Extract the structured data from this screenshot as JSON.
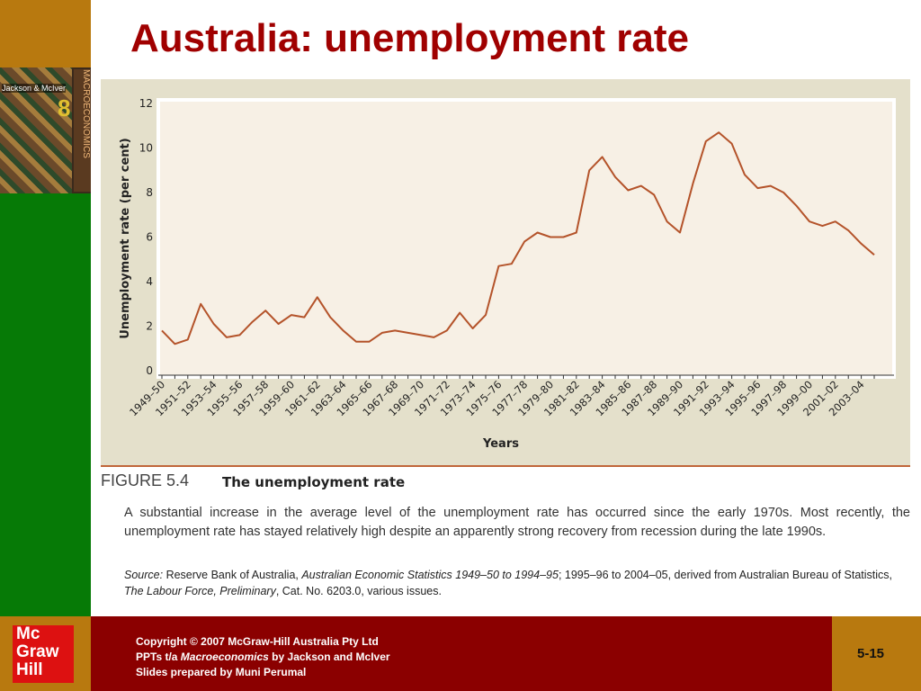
{
  "slide": {
    "title": "Australia: unemployment rate",
    "figure_label": "FIGURE 5.4",
    "figure_title": "The unemployment rate",
    "caption": "A substantial increase in the average level of the unemployment rate has occurred since the early 1970s. Most recently, the unemployment rate has stayed relatively high despite an apparently strong recovery from recession during the late 1990s.",
    "source": [
      "Source:",
      " Reserve Bank of Australia, ",
      "Australian Economic Statistics 1949–50 to 1994–95",
      "; 1995–96 to 2004–05, derived from Australian Bureau of Statistics, ",
      "The Labour Force, Preliminary",
      ", Cat. No. 6203.0, various issues."
    ],
    "book": {
      "authors": "Jackson & McIver",
      "edition": "8",
      "name": "MACROECONOMICS"
    },
    "logo": [
      "Mc",
      "Graw",
      "Hill"
    ],
    "footer": {
      "line1": "Copyright © 2007 McGraw-Hill Australia Pty Ltd",
      "line2": [
        "PPTs t/a ",
        "Macroeconomics",
        " by Jackson and McIver"
      ],
      "line3": "Slides prepared by Muni Perumal"
    },
    "page_number": "5-15"
  },
  "chart_data": {
    "type": "line",
    "x_label": "Years",
    "y_label": "Unemployment rate (per cent)",
    "color": "#b4532a",
    "categories": [
      "1949–50",
      null,
      "1951–52",
      null,
      "1953–54",
      null,
      "1955–56",
      null,
      "1957–58",
      null,
      "1959–60",
      null,
      "1961–62",
      null,
      "1963–64",
      null,
      "1965–66",
      null,
      "1967–68",
      null,
      "1969–70",
      null,
      "1971–72",
      null,
      "1973–74",
      null,
      "1975–76",
      null,
      "1977–78",
      null,
      "1979–80",
      null,
      "1981–82",
      null,
      "1983–84",
      null,
      "1985–86",
      null,
      "1987–88",
      null,
      "1989–90",
      null,
      "1991–92",
      null,
      "1993–94",
      null,
      "1995–96",
      null,
      "1997–98",
      null,
      "1999–00",
      null,
      "2001–02",
      null,
      "2003–04",
      null
    ],
    "values": [
      1.8,
      1.2,
      1.4,
      3.0,
      2.1,
      1.5,
      1.6,
      2.2,
      2.7,
      2.1,
      2.5,
      2.4,
      3.3,
      2.4,
      1.8,
      1.3,
      1.3,
      1.7,
      1.8,
      1.7,
      1.6,
      1.5,
      1.8,
      2.6,
      1.9,
      2.5,
      4.7,
      4.8,
      5.8,
      6.2,
      6.0,
      6.0,
      6.2,
      9.0,
      9.6,
      8.7,
      8.1,
      8.3,
      7.9,
      6.7,
      6.2,
      8.4,
      10.3,
      10.7,
      10.2,
      8.8,
      8.2,
      8.3,
      8.0,
      7.4,
      6.7,
      6.5,
      6.7,
      6.3,
      5.7,
      5.2
    ],
    "ylim": [
      0,
      12
    ],
    "yticks": [
      0,
      2,
      4,
      6,
      8,
      10,
      12
    ]
  }
}
